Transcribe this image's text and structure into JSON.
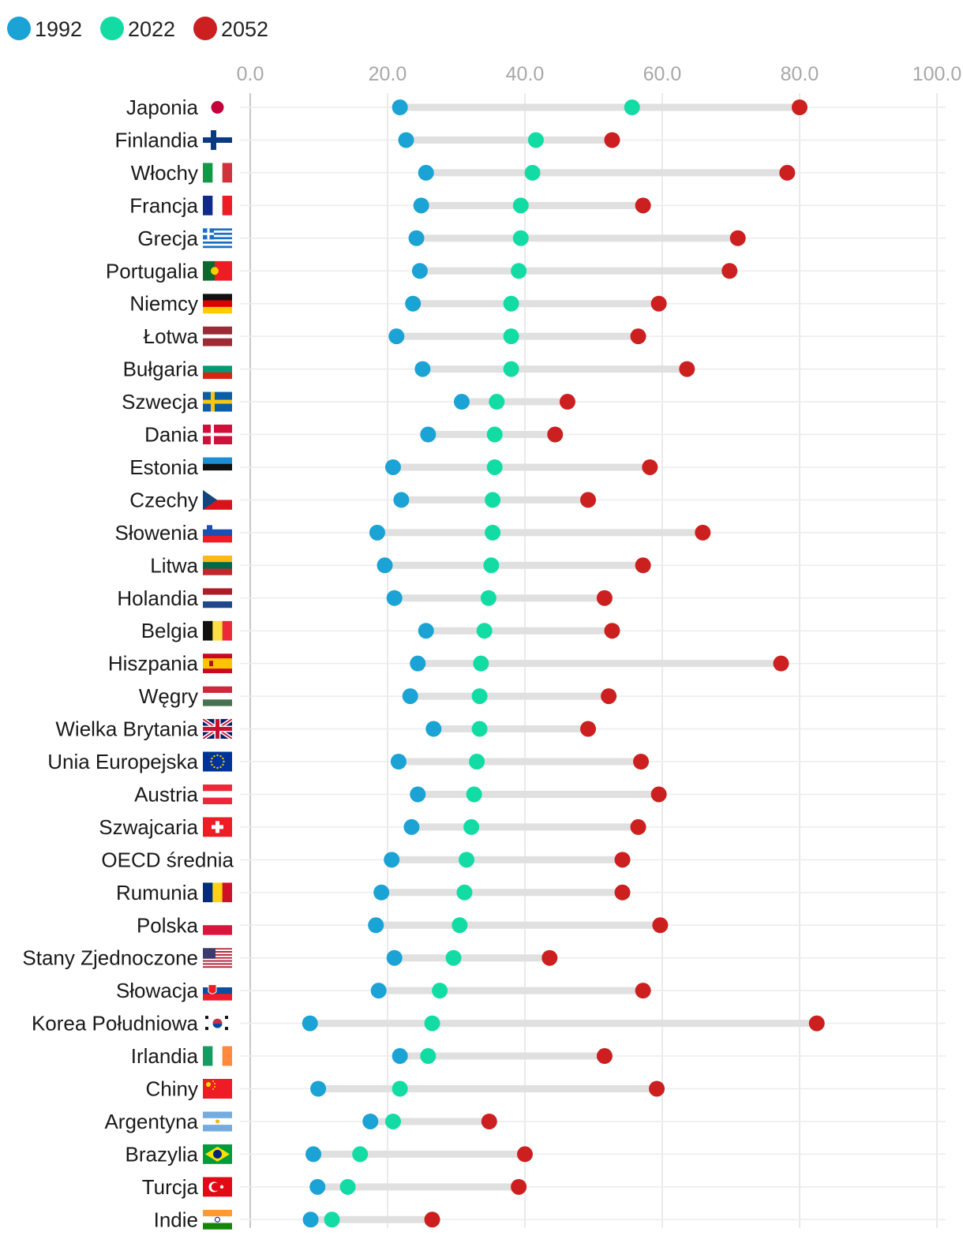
{
  "chart_data": {
    "type": "dumbbell",
    "title": "",
    "xlabel": "",
    "ylabel": "",
    "xlim": [
      0,
      100
    ],
    "x_ticks": [
      "0.0",
      "20.0",
      "40.0",
      "60.0",
      "80.0",
      "100.0"
    ],
    "grid": "vertical",
    "legend_position": "top-left",
    "series": [
      {
        "name": "1992",
        "color": "#1aa3d4"
      },
      {
        "name": "2022",
        "color": "#12dca4"
      },
      {
        "name": "2052",
        "color": "#cc2020"
      }
    ],
    "categories": [
      "Japonia",
      "Finlandia",
      "Włochy",
      "Francja",
      "Grecja",
      "Portugalia",
      "Niemcy",
      "Łotwa",
      "Bułgaria",
      "Szwecja",
      "Dania",
      "Estonia",
      "Czechy",
      "Słowenia",
      "Litwa",
      "Holandia",
      "Belgia",
      "Hiszpania",
      "Węgry",
      "Wielka Brytania",
      "Unia Europejska",
      "Austria",
      "Szwajcaria",
      "OECD średnia",
      "Rumunia",
      "Polska",
      "Stany Zjednoczone",
      "Słowacja",
      "Korea Południowa",
      "Irlandia",
      "Chiny",
      "Argentyna",
      "Brazylia",
      "Turcja",
      "Indie"
    ],
    "flags": [
      "japan",
      "finland",
      "italy",
      "france",
      "greece",
      "portugal",
      "germany",
      "latvia",
      "bulgaria",
      "sweden",
      "denmark",
      "estonia",
      "czechia",
      "slovenia",
      "lithuania",
      "netherlands",
      "belgium",
      "spain",
      "hungary",
      "uk",
      "eu",
      "austria",
      "switzerland",
      "none",
      "romania",
      "poland",
      "usa",
      "slovakia",
      "south-korea",
      "ireland",
      "china",
      "argentina",
      "brazil",
      "turkey",
      "india"
    ],
    "values_1992": [
      21.8,
      22.7,
      25.6,
      24.9,
      24.2,
      24.7,
      23.7,
      21.3,
      25.1,
      30.8,
      25.9,
      20.8,
      22.0,
      18.5,
      19.6,
      21.0,
      25.6,
      24.4,
      23.3,
      26.7,
      21.6,
      24.4,
      23.5,
      20.6,
      19.1,
      18.3,
      21.0,
      18.7,
      8.7,
      21.8,
      9.9,
      17.5,
      9.2,
      9.8,
      8.8
    ],
    "values_2022": [
      55.6,
      41.6,
      41.1,
      39.4,
      39.4,
      39.1,
      38.0,
      38.0,
      38.0,
      35.9,
      35.6,
      35.6,
      35.3,
      35.3,
      35.1,
      34.7,
      34.1,
      33.6,
      33.4,
      33.4,
      33.0,
      32.6,
      32.2,
      31.5,
      31.2,
      30.5,
      29.6,
      27.6,
      26.5,
      25.9,
      21.8,
      20.8,
      16.0,
      14.2,
      11.9
    ],
    "values_2052": [
      80.0,
      52.7,
      78.2,
      57.2,
      71.0,
      69.8,
      59.5,
      56.5,
      63.6,
      46.2,
      44.4,
      58.2,
      49.2,
      65.9,
      57.2,
      51.6,
      52.7,
      77.3,
      52.2,
      49.2,
      56.9,
      59.5,
      56.5,
      54.2,
      54.2,
      59.7,
      43.6,
      57.2,
      82.5,
      51.6,
      59.2,
      34.8,
      40.0,
      39.1,
      26.5
    ]
  }
}
